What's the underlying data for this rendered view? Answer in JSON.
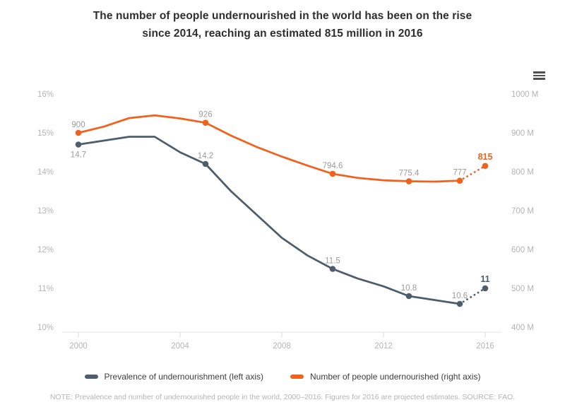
{
  "title": {
    "line1": "The number of people undernourished in the world has been on the rise",
    "line2": "since 2014, reaching an estimated 815 million in 2016"
  },
  "chart_data": {
    "type": "line",
    "x": [
      2000,
      2001,
      2002,
      2003,
      2004,
      2005,
      2006,
      2007,
      2008,
      2009,
      2010,
      2011,
      2012,
      2013,
      2014,
      2015,
      2016
    ],
    "x_axis": {
      "tick_years": [
        2000,
        2004,
        2008,
        2012,
        2016
      ],
      "tick_labels": [
        "2000",
        "2004",
        "2008",
        "2012",
        "2016"
      ]
    },
    "left_axis": {
      "min": 10,
      "max": 16,
      "tick_values": [
        16,
        15,
        14,
        13,
        12,
        11,
        10
      ],
      "tick_labels": [
        "16%",
        "15%",
        "14%",
        "13%",
        "12%",
        "11%",
        "10%"
      ]
    },
    "right_axis": {
      "min": 400,
      "max": 1000,
      "tick_values": [
        1000,
        900,
        800,
        700,
        600,
        500,
        400
      ],
      "tick_labels": [
        "1000 M",
        "900 M",
        "800 M",
        "700 M",
        "600 M",
        "500 M",
        "400 M"
      ]
    },
    "projection_from_year": 2015,
    "series": [
      {
        "name": "Prevalence of undernourishment (left axis)",
        "axis": "left",
        "color": "#4d5d6c",
        "values": [
          14.7,
          14.8,
          14.9,
          14.9,
          14.5,
          14.2,
          13.5,
          12.9,
          12.3,
          11.85,
          11.5,
          11.25,
          11.05,
          10.8,
          10.7,
          10.6,
          11
        ],
        "point_labels": [
          {
            "year": 2000,
            "text": "14.7",
            "position": "below",
            "bold": false
          },
          {
            "year": 2005,
            "text": "14.2",
            "position": "above",
            "bold": false
          },
          {
            "year": 2010,
            "text": "11.5",
            "position": "above",
            "bold": false
          },
          {
            "year": 2013,
            "text": "10.8",
            "position": "above",
            "bold": false
          },
          {
            "year": 2015,
            "text": "10.6",
            "position": "above",
            "bold": false
          },
          {
            "year": 2016,
            "text": "11",
            "position": "above",
            "bold": true
          }
        ]
      },
      {
        "name": "Number of people undernourished (right axis)",
        "axis": "right",
        "color": "#f2611c",
        "values": [
          900,
          916,
          938,
          945,
          937,
          926,
          893,
          864,
          839,
          816,
          794.6,
          784,
          778,
          775.4,
          774.5,
          777,
          815
        ],
        "point_labels": [
          {
            "year": 2000,
            "text": "900",
            "position": "above",
            "bold": false
          },
          {
            "year": 2005,
            "text": "926",
            "position": "above",
            "bold": false
          },
          {
            "year": 2010,
            "text": "794.6",
            "position": "above",
            "bold": false
          },
          {
            "year": 2013,
            "text": "775.4",
            "position": "above",
            "bold": false
          },
          {
            "year": 2015,
            "text": "777",
            "position": "above",
            "bold": false
          },
          {
            "year": 2016,
            "text": "815",
            "position": "above",
            "bold": true
          }
        ]
      }
    ]
  },
  "legend": {
    "items": [
      {
        "label": "Prevalence of undernourishment (left axis)",
        "color": "#4d5d6c"
      },
      {
        "label": "Number of people undernourished (right axis)",
        "color": "#f2611c"
      }
    ]
  },
  "note": {
    "text": "NOTE: Prevalence and number of undernourished people in the world, 2000–2016. Figures for 2016 are projected estimates. SOURCE: FAO."
  },
  "colors": {
    "slate": "#4d5d6c",
    "orange": "#f2611c",
    "title_text": "#2e2e2e",
    "axis_label": "#b5b5b5",
    "data_label": "#9b9b9b",
    "axis_line": "#e4e4e4",
    "tick_mark": "#d8d8d8",
    "menu_icon": "#4f4f4f"
  }
}
